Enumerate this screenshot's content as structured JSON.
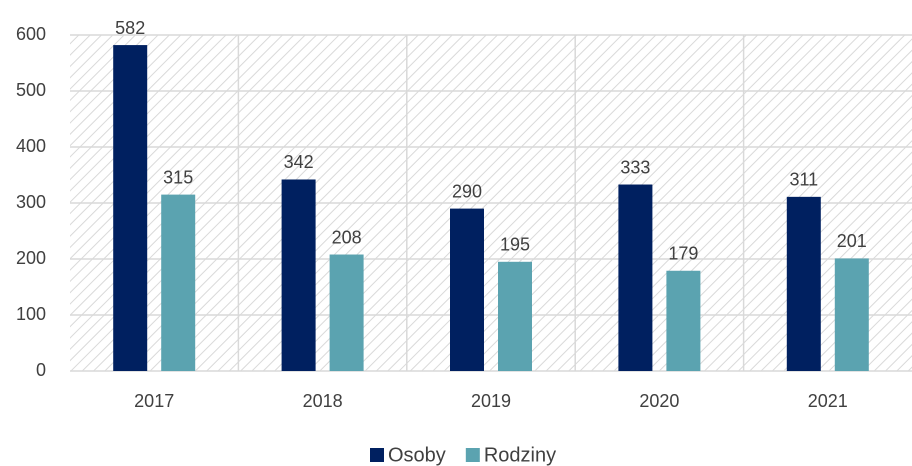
{
  "chart_data": {
    "type": "bar",
    "categories": [
      "2017",
      "2018",
      "2019",
      "2020",
      "2021"
    ],
    "series": [
      {
        "name": "Osoby",
        "color": "#002060",
        "values": [
          582,
          342,
          290,
          333,
          311
        ]
      },
      {
        "name": "Rodziny",
        "color": "#5ba3b0",
        "values": [
          315,
          208,
          195,
          179,
          201
        ]
      }
    ],
    "ylim": [
      0,
      600
    ],
    "yticks": [
      0,
      100,
      200,
      300,
      400,
      500,
      600
    ],
    "grid": true,
    "legend": "bottom"
  }
}
